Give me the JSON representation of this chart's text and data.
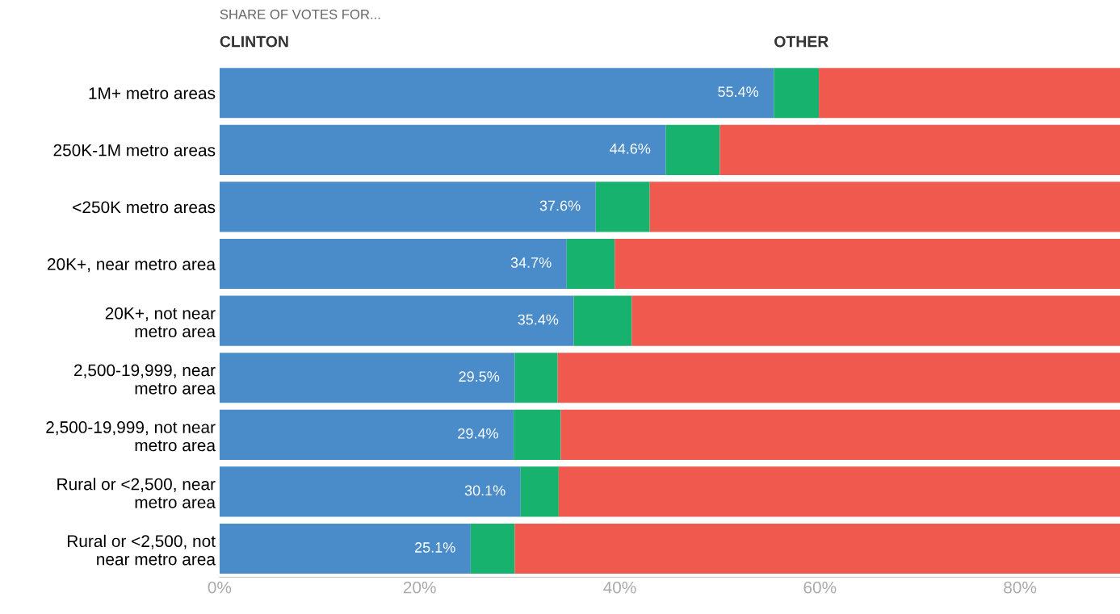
{
  "chart_data": {
    "type": "bar",
    "orientation": "horizontal",
    "stacked": true,
    "subtitle": "SHARE OF VOTES FOR...",
    "categories": [
      "1M+ metro areas",
      "250K-1M metro areas",
      "<250K metro areas",
      "20K+, near metro area",
      "20K+, not near\nmetro area",
      "2,500-19,999, near\nmetro area",
      "2,500-19,999, not near\nmetro area",
      "Rural or <2,500, near\nmetro area",
      "Rural or <2,500, not\nnear metro area"
    ],
    "series": [
      {
        "name": "CLINTON",
        "color": "#4a8cc9",
        "values": [
          55.4,
          44.6,
          37.6,
          34.7,
          35.4,
          29.5,
          29.4,
          30.1,
          25.1
        ],
        "value_labels": [
          "55.4%",
          "44.6%",
          "37.6%",
          "34.7%",
          "35.4%",
          "29.5%",
          "29.4%",
          "30.1%",
          "25.1%"
        ]
      },
      {
        "name": "OTHER",
        "color": "#18b26f",
        "values": [
          4.5,
          5.4,
          5.4,
          4.8,
          5.8,
          4.3,
          4.7,
          3.8,
          4.4
        ]
      },
      {
        "color": "#f05a4e",
        "values": [
          30.1,
          40.0,
          47.0,
          50.5,
          48.8,
          56.2,
          55.9,
          56.1,
          60.5
        ]
      }
    ],
    "xlim": [
      0,
      90
    ],
    "xticks": [
      {
        "value": 0,
        "label": "0%"
      },
      {
        "value": 20,
        "label": "20%"
      },
      {
        "value": 40,
        "label": "40%"
      },
      {
        "value": 60,
        "label": "60%"
      },
      {
        "value": 80,
        "label": "80%"
      }
    ],
    "grid": false,
    "legend": false
  }
}
